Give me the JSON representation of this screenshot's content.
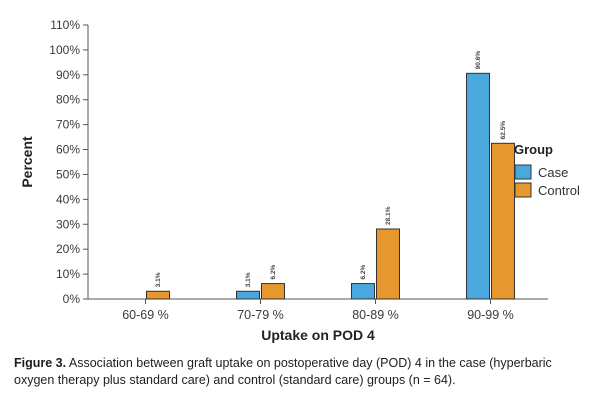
{
  "chart_data": {
    "type": "bar",
    "categories": [
      "60-69 %",
      "70-79 %",
      "80-89 %",
      "90-99 %"
    ],
    "series": [
      {
        "name": "Case",
        "values": [
          0,
          3.1,
          6.2,
          90.6
        ],
        "labels": [
          "",
          "3.1%",
          "6.2%",
          "90.6%"
        ],
        "color": "#4aa8de"
      },
      {
        "name": "Control",
        "values": [
          3.1,
          6.2,
          28.1,
          62.5
        ],
        "labels": [
          "3.1%",
          "6.2%",
          "28.1%",
          "62.5%"
        ],
        "color": "#e6972e"
      }
    ],
    "xlabel": "Uptake on POD 4",
    "ylabel": "Percent",
    "ylim": [
      0,
      110
    ],
    "yticks": [
      "0%",
      "10%",
      "20%",
      "30%",
      "40%",
      "50%",
      "60%",
      "70%",
      "80%",
      "90%",
      "100%",
      "110%"
    ],
    "legend": {
      "title": "Group",
      "position": "right"
    },
    "grid": false
  },
  "caption": {
    "label": "Figure 3.",
    "text": " Association between graft uptake on postoperative day (POD) 4 in the case (hyperbaric oxygen therapy plus standard care) and control (standard care) groups (n = 64)."
  }
}
